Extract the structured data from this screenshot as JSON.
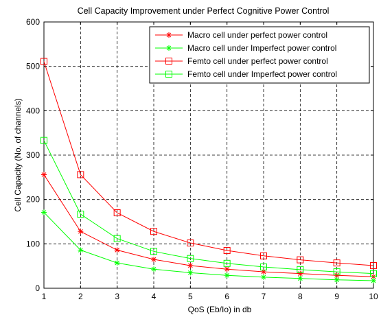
{
  "chart_data": {
    "type": "line",
    "title": "Cell Capacity Improvement under Perfect Cognitive Power Control",
    "xlabel": "QoS (Eb/Io) in db",
    "ylabel": "Cell Capacity (No. of channels)",
    "x": [
      1,
      2,
      3,
      4,
      5,
      6,
      7,
      8,
      9,
      10
    ],
    "xlim": [
      1,
      10
    ],
    "ylim": [
      0,
      600
    ],
    "xticks": [
      "1",
      "2",
      "3",
      "4",
      "5",
      "6",
      "7",
      "8",
      "9",
      "10"
    ],
    "yticks": [
      "0",
      "100",
      "200",
      "300",
      "400",
      "500",
      "600"
    ],
    "grid": true,
    "legend_position": "top-right",
    "series": [
      {
        "name": "Macro cell under perfect power control",
        "color": "#ff0000",
        "marker": "star",
        "values": [
          256,
          128,
          86,
          65,
          51,
          43,
          37,
          33,
          29,
          26
        ]
      },
      {
        "name": "Macro cell under Imperfect power control",
        "color": "#00ff00",
        "marker": "star",
        "values": [
          171,
          86,
          57,
          43,
          35,
          29,
          25,
          22,
          19,
          17
        ]
      },
      {
        "name": "Femto cell under perfect power control",
        "color": "#ff0000",
        "marker": "square",
        "values": [
          511,
          256,
          170,
          128,
          102,
          85,
          73,
          64,
          57,
          51
        ]
      },
      {
        "name": "Femto cell under Imperfect power control",
        "color": "#00ff00",
        "marker": "square",
        "values": [
          333,
          167,
          112,
          83,
          67,
          56,
          48,
          42,
          37,
          33
        ]
      }
    ]
  }
}
